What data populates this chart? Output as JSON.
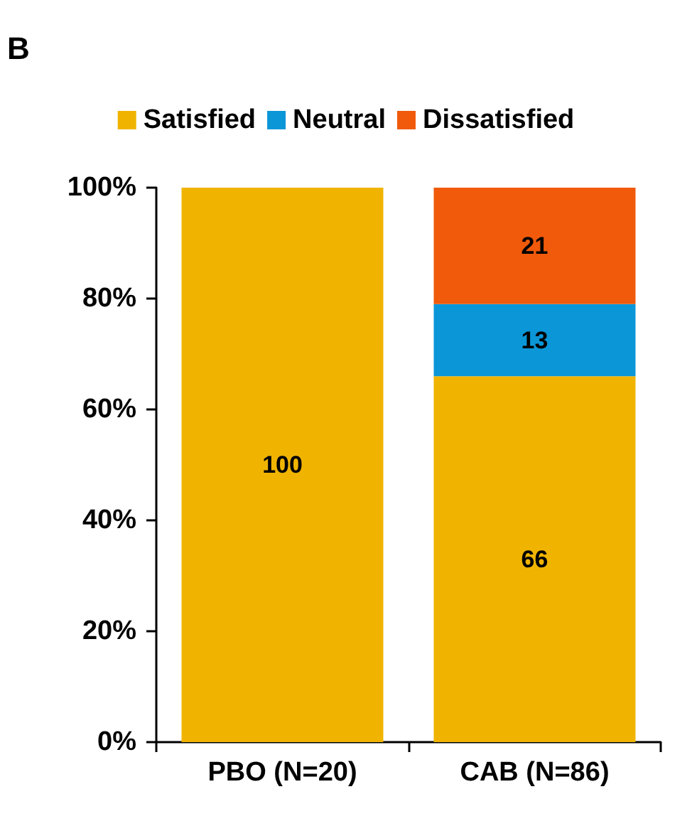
{
  "chart_data": {
    "type": "bar",
    "title": "B",
    "categories": [
      "PBO (N=20)",
      "CAB (N=86)"
    ],
    "stacked": true,
    "data_labels": true,
    "legend": "top",
    "grid": false,
    "series": [
      {
        "name": "Satisfied",
        "color": "#f0b400",
        "values": [
          100,
          66
        ]
      },
      {
        "name": "Neutral",
        "color": "#0b96d8",
        "values": [
          null,
          13
        ]
      },
      {
        "name": "Dissatisfied",
        "color": "#f05a0a",
        "values": [
          null,
          21
        ]
      }
    ],
    "ylim": [
      0,
      100
    ],
    "yticks": [
      {
        "value": 0,
        "label": "0%"
      },
      {
        "value": 20,
        "label": "20%"
      },
      {
        "value": 40,
        "label": "40%"
      },
      {
        "value": 60,
        "label": "60%"
      },
      {
        "value": 80,
        "label": "80%"
      },
      {
        "value": 100,
        "label": "100%"
      }
    ]
  }
}
